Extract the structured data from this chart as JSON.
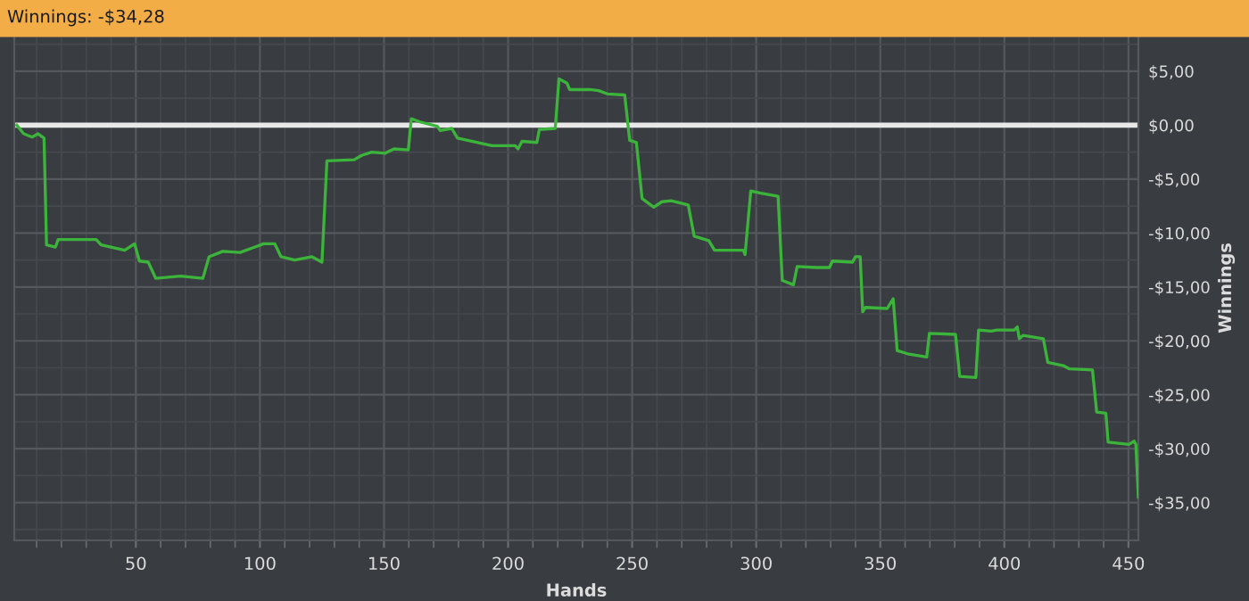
{
  "chart_data": {
    "type": "line",
    "title": "Winnings: -$34,28",
    "xlabel": "Hands",
    "ylabel": "Winnings",
    "xlim": [
      1,
      454
    ],
    "xticks": [
      50,
      100,
      150,
      200,
      250,
      300,
      350,
      400,
      450
    ],
    "ylim": [
      -38.5,
      8.3
    ],
    "yticks": [
      {
        "value": 5,
        "label": "$5,00"
      },
      {
        "value": 0,
        "label": "$0,00"
      },
      {
        "value": -5,
        "label": "-$5,00"
      },
      {
        "value": -10,
        "label": "-$10,00"
      },
      {
        "value": -15,
        "label": "-$15,00"
      },
      {
        "value": -20,
        "label": "-$20,00"
      },
      {
        "value": -25,
        "label": "-$25,00"
      },
      {
        "value": -30,
        "label": "-$30,00"
      },
      {
        "value": -35,
        "label": "-$35,00"
      }
    ],
    "grid": true,
    "legend": false,
    "marker": "none",
    "line_style": "solid",
    "ref_lines": [
      {
        "axis": "y",
        "value": 0,
        "color": "#e8e8e8"
      }
    ],
    "series": [
      {
        "color": "#3cb43c",
        "x": [
          2,
          4.8,
          8.2,
          10.6,
          13,
          14,
          17.6,
          18.7,
          34,
          36,
          45.5,
          49.5,
          51.4,
          55,
          58,
          68,
          77,
          79.5,
          85,
          92,
          98,
          101.5,
          106,
          108.5,
          114,
          121,
          125,
          127,
          138,
          141,
          145,
          150.5,
          154,
          159.8,
          161,
          164.5,
          171.5,
          172.6,
          177.3,
          179.6,
          193.5,
          202.9,
          204,
          205.6,
          211.6,
          212.6,
          219,
          220.5,
          223.7,
          224.8,
          233,
          236.5,
          240,
          247,
          249,
          251.7,
          254,
          258.7,
          262,
          265.7,
          272.6,
          275,
          280.9,
          283.2,
          294.8,
          295.5,
          297.8,
          301.8,
          308.8,
          310.5,
          315,
          316.5,
          324,
          329.5,
          330.7,
          338.8,
          340,
          341.9,
          342.9,
          344,
          352.8,
          355.2,
          356.8,
          361,
          368.7,
          369.8,
          380.3,
          382,
          388.5,
          389.6,
          394.7,
          397,
          404,
          405.2,
          406,
          407.5,
          415.7,
          417.5,
          423.8,
          426.2,
          435.5,
          437.2,
          440.9,
          441.8,
          450.2,
          452.3,
          453,
          454
        ],
        "values": [
          0,
          -0.8,
          -1.1,
          -0.8,
          -1.2,
          -11.1,
          -11.3,
          -10.6,
          -10.6,
          -11.1,
          -11.6,
          -11,
          -12.6,
          -12.7,
          -14.2,
          -14,
          -14.2,
          -12.2,
          -11.7,
          -11.8,
          -11.3,
          -11,
          -11,
          -12.2,
          -12.5,
          -12.2,
          -12.7,
          -3.3,
          -3.2,
          -2.8,
          -2.5,
          -2.6,
          -2.2,
          -2.3,
          0.6,
          0.3,
          -0.1,
          -0.5,
          -0.3,
          -1.2,
          -1.9,
          -1.9,
          -2.2,
          -1.5,
          -1.6,
          -0.4,
          -0.3,
          4.3,
          3.9,
          3.3,
          3.3,
          3.2,
          2.9,
          2.8,
          -1.4,
          -1.6,
          -6.8,
          -7.6,
          -7.1,
          -7,
          -7.4,
          -10.3,
          -10.7,
          -11.6,
          -11.6,
          -12,
          -6.1,
          -6.3,
          -6.6,
          -14.4,
          -14.8,
          -13.1,
          -13.2,
          -13.2,
          -12.6,
          -12.7,
          -12.2,
          -12.2,
          -17.3,
          -16.9,
          -17,
          -16.1,
          -20.9,
          -21.2,
          -21.5,
          -19.3,
          -19.4,
          -23.3,
          -23.4,
          -19,
          -19.1,
          -19,
          -19,
          -18.7,
          -19.8,
          -19.5,
          -19.8,
          -22,
          -22.3,
          -22.6,
          -22.7,
          -26.6,
          -26.7,
          -29.4,
          -29.6,
          -29.3,
          -29.6,
          -34.5
        ]
      }
    ]
  }
}
